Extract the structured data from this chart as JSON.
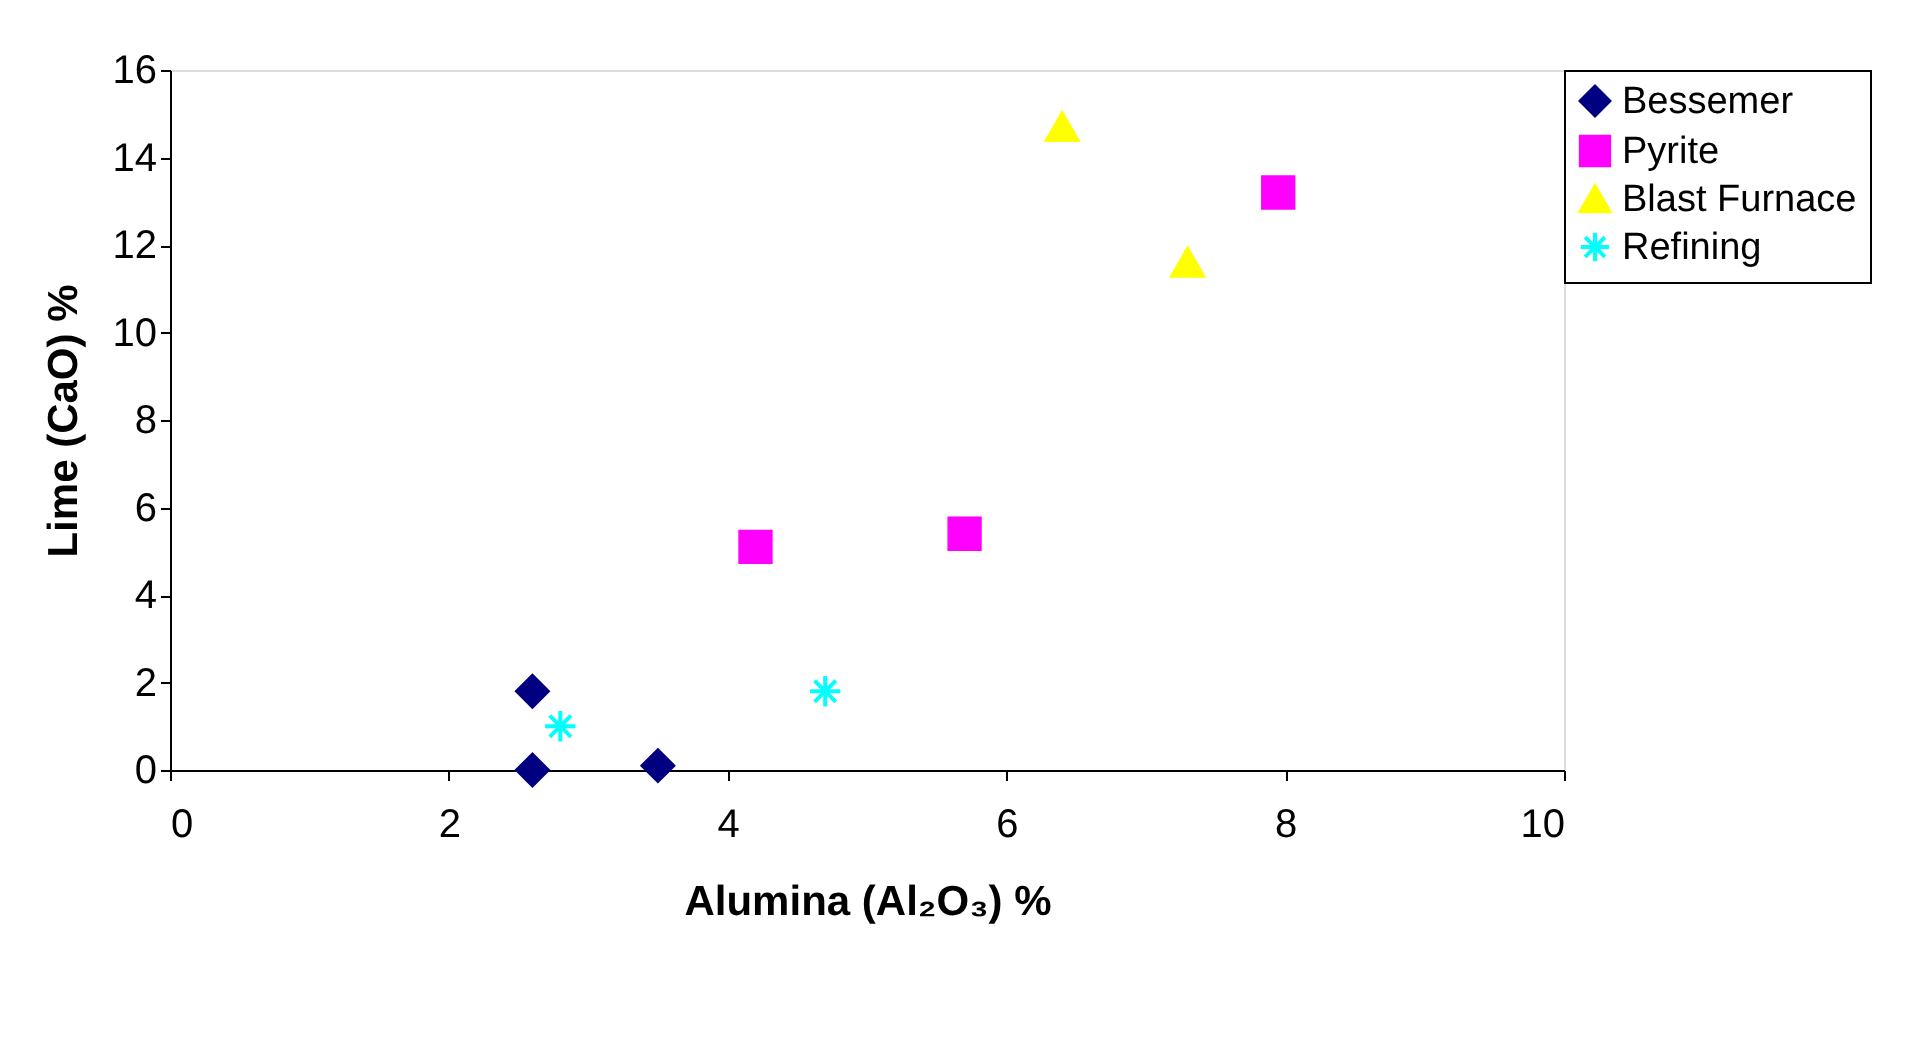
{
  "chart_data": {
    "type": "scatter",
    "xlabel": "Alumina (Al₂O₃) %",
    "ylabel": "Lime (CaO) %",
    "xlim": [
      0,
      10
    ],
    "xticks": [
      0,
      2,
      4,
      6,
      8,
      10
    ],
    "ylim": [
      0,
      16
    ],
    "yticks": [
      0,
      2,
      4,
      6,
      8,
      10,
      12,
      14,
      16
    ],
    "grid": false,
    "legend": "top right",
    "series": [
      {
        "name": "Bessemer",
        "color": "#000080",
        "marker": "diamond",
        "x": [
          2.6,
          2.6,
          3.5
        ],
        "values": [
          1.8,
          0,
          0.1
        ]
      },
      {
        "name": "Pyrite",
        "color": "#ff00ff",
        "marker": "square",
        "x": [
          4.2,
          5.7,
          7.95
        ],
        "values": [
          5.1,
          5.4,
          13.2
        ]
      },
      {
        "name": "Blast Furnace",
        "color": "#ffff00",
        "marker": "triangle",
        "x": [
          6.4,
          7.3
        ],
        "values": [
          14.7,
          11.6
        ]
      },
      {
        "name": "Refining",
        "color": "#00ffff",
        "marker": "cross",
        "x": [
          2.8,
          4.7
        ],
        "values": [
          1.0,
          1.8
        ]
      }
    ]
  }
}
